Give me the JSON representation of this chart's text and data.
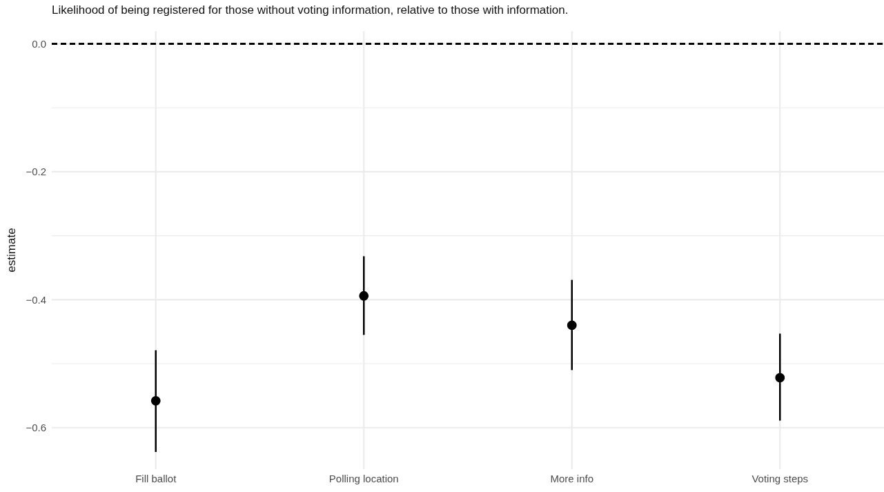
{
  "chart_data": {
    "type": "scatter",
    "title": "Likelihood of being registered for those without voting information, relative to those with information.",
    "ylabel": "estimate",
    "categories": [
      "Fill ballot",
      "Polling location",
      "More info",
      "Voting steps"
    ],
    "values": [
      -0.558,
      -0.394,
      -0.44,
      -0.522
    ],
    "errors": [
      [
        -0.638,
        -0.479
      ],
      [
        -0.455,
        -0.332
      ],
      [
        -0.51,
        -0.369
      ],
      [
        -0.589,
        -0.453
      ]
    ],
    "color": "#000000",
    "marker": "circle",
    "ylim": [
      -0.665,
      0.02
    ],
    "yticks": [
      {
        "value": -0.6,
        "label": "−0.6"
      },
      {
        "value": -0.5,
        "label": null
      },
      {
        "value": -0.4,
        "label": "−0.4"
      },
      {
        "value": -0.3,
        "label": null
      },
      {
        "value": -0.2,
        "label": "−0.2"
      },
      {
        "value": -0.1,
        "label": null
      },
      {
        "value": 0,
        "label": "0.0"
      }
    ],
    "ref_lines": [
      {
        "axis": "y",
        "value": 0,
        "color": "#000000",
        "line_style": "dashed"
      }
    ],
    "grid": true
  }
}
